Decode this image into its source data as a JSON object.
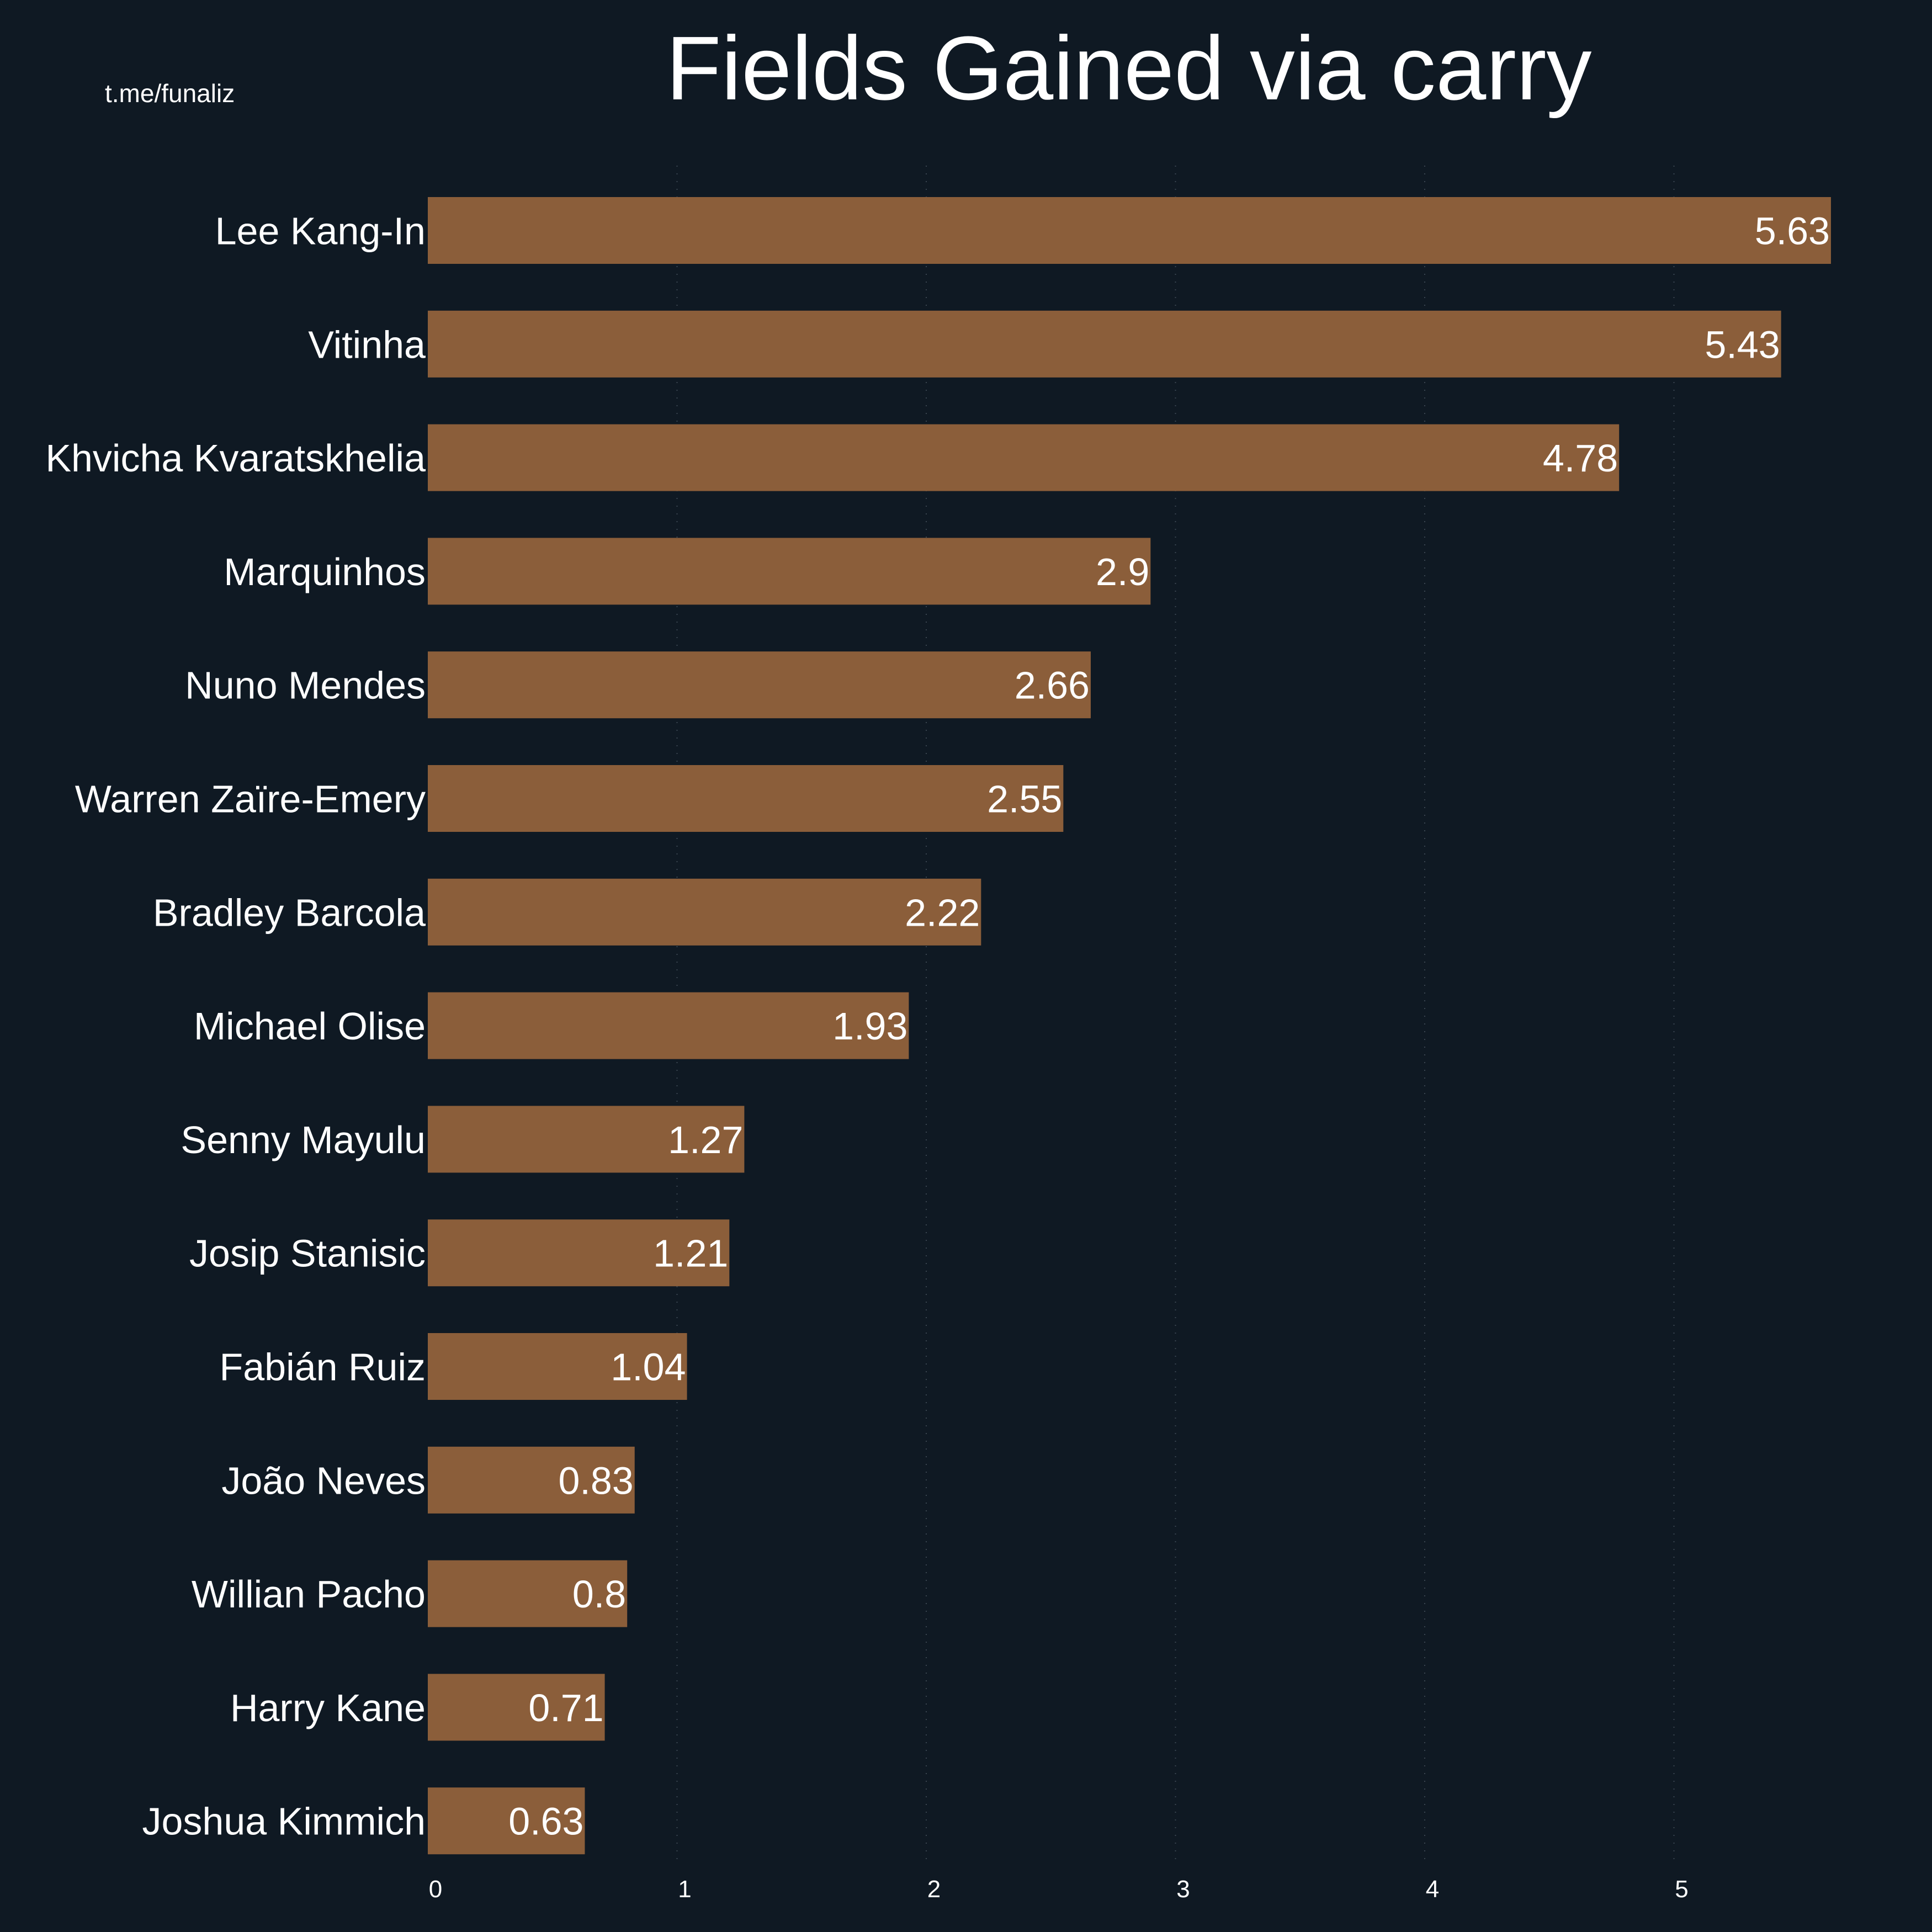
{
  "watermark": "t.me/funaliz",
  "chart_data": {
    "type": "bar",
    "orientation": "horizontal",
    "title": "Fields Gained via carry",
    "xlabel": "",
    "ylabel": "",
    "xlim": [
      0,
      5.63
    ],
    "grid": "vertical dotted (faint)",
    "legend": "none",
    "bar_color": "#8b5e3a",
    "background_color": "#0f1923",
    "text_color": "#ffffff",
    "x_ticks": [
      "0",
      "1",
      "2",
      "3",
      "4",
      "5"
    ],
    "categories": [
      "Lee Kang-In",
      "Vitinha",
      "Khvicha Kvaratskhelia",
      "Marquinhos",
      "Nuno Mendes",
      "Warren Zaïre-Emery",
      "Bradley Barcola",
      "Michael Olise",
      "Senny Mayulu",
      "Josip Stanisic",
      "Fabián Ruiz",
      "João Neves",
      "Willian Pacho",
      "Harry Kane",
      "Joshua Kimmich"
    ],
    "values": [
      5.63,
      5.43,
      4.78,
      2.9,
      2.66,
      2.55,
      2.22,
      1.93,
      1.27,
      1.21,
      1.04,
      0.83,
      0.8,
      0.71,
      0.63
    ],
    "value_labels": [
      "5.63",
      "5.43",
      "4.78",
      "2.9",
      "2.66",
      "2.55",
      "2.22",
      "1.93",
      "1.27",
      "1.21",
      "1.04",
      "0.83",
      "0.8",
      "0.71",
      "0.63"
    ]
  }
}
